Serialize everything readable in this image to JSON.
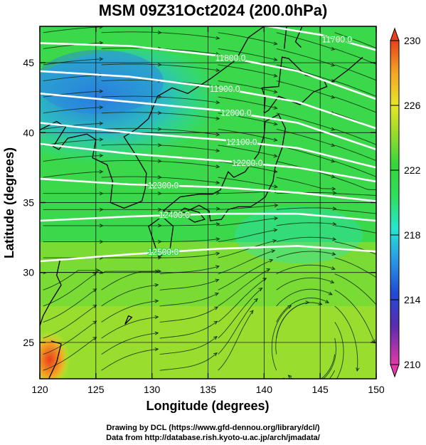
{
  "title": "MSM 09Z31Oct2024 (200.0hPa)",
  "credits": {
    "line1": "Drawing by DCL (https://www.gfd-dennou.org/library/dcl/)",
    "line2": "Data from http://database.rish.kyoto-u.ac.jp/arch/jmadata/"
  },
  "map": {
    "xlabel": "Longitude (degrees)",
    "ylabel": "Latitude  (degrees)",
    "xlim": [
      120,
      150
    ],
    "ylim": [
      22.4,
      47.6
    ],
    "xticks": [
      120,
      125,
      130,
      135,
      140,
      145,
      150
    ],
    "yticks": [
      25,
      30,
      35,
      40,
      45
    ],
    "grid_lon": [
      125,
      130,
      135,
      140,
      145
    ],
    "grid_lat": [
      25,
      30,
      35,
      40,
      45
    ],
    "field": "temperature (shaded), geopotential height (white contours), wind streamlines",
    "contours": [
      {
        "label": "11700.0",
        "lat_at_lon": [
          [
            120,
            48.9
          ],
          [
            135,
            48.3
          ],
          [
            145,
            47.0
          ],
          [
            150,
            45.9
          ]
        ],
        "label_lon": 146.5
      },
      {
        "label": "11800.0",
        "lat_at_lon": [
          [
            120,
            46.4
          ],
          [
            128,
            46.2
          ],
          [
            136,
            45.5
          ],
          [
            143,
            44.4
          ],
          [
            150,
            42.4
          ]
        ],
        "label_lon": 137.0
      },
      {
        "label": "11900.0",
        "lat_at_lon": [
          [
            120,
            44.4
          ],
          [
            128,
            44.0
          ],
          [
            136,
            43.2
          ],
          [
            143,
            42.2
          ],
          [
            150,
            40.3
          ]
        ],
        "label_lon": 136.5
      },
      {
        "label": "12000.0",
        "lat_at_lon": [
          [
            120,
            42.8
          ],
          [
            128,
            42.2
          ],
          [
            136,
            41.6
          ],
          [
            143,
            40.7
          ],
          [
            150,
            38.8
          ]
        ],
        "label_lon": 137.5
      },
      {
        "label": "12100.0",
        "lat_at_lon": [
          [
            120,
            40.7
          ],
          [
            128,
            40.0
          ],
          [
            136,
            39.5
          ],
          [
            143,
            38.9
          ],
          [
            150,
            37.5
          ]
        ],
        "label_lon": 138.0
      },
      {
        "label": "12200.0",
        "lat_at_lon": [
          [
            120,
            39.2
          ],
          [
            128,
            38.5
          ],
          [
            136,
            38.0
          ],
          [
            143,
            37.5
          ],
          [
            150,
            36.5
          ]
        ],
        "label_lon": 138.5
      },
      {
        "label": "12300.0",
        "lat_at_lon": [
          [
            120,
            36.7
          ],
          [
            128,
            36.3
          ],
          [
            136,
            36.1
          ],
          [
            143,
            35.7
          ],
          [
            150,
            35.1
          ]
        ],
        "label_lon": 131.0
      },
      {
        "label": "12400.0",
        "lat_at_lon": [
          [
            120,
            33.7
          ],
          [
            128,
            34.0
          ],
          [
            136,
            34.2
          ],
          [
            143,
            34.2
          ],
          [
            150,
            33.7
          ]
        ],
        "label_lon": 132.0
      },
      {
        "label": "12500.0",
        "lat_at_lon": [
          [
            120,
            30.8
          ],
          [
            128,
            31.3
          ],
          [
            136,
            31.7
          ],
          [
            143,
            31.9
          ],
          [
            150,
            31.5
          ]
        ],
        "label_lon": 131.0
      }
    ]
  },
  "colorbar": {
    "min": 210,
    "max": 230,
    "ticks": [
      230,
      226,
      222,
      218,
      214,
      210
    ],
    "stops": [
      "#e33aa8",
      "#5a2bb0",
      "#1f4bd6",
      "#2a9ee8",
      "#27e6d0",
      "#2ee05a",
      "#37d63a",
      "#9fdd2a",
      "#e6e62a",
      "#f4a623",
      "#e8401c"
    ]
  }
}
